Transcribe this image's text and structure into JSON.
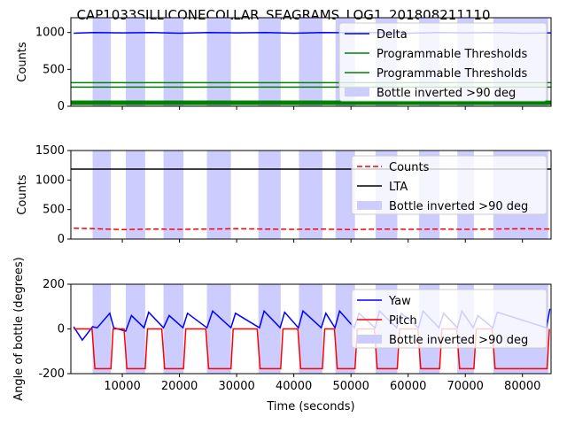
{
  "title": "CAP1033SILLICONECOLLAR_SEAGRAMS_LOG1_201808211110",
  "colors": {
    "delta": "#0000ff",
    "threshold": "#008000",
    "counts": "#ff0000",
    "lta": "#000000",
    "yaw": "#0000ff",
    "pitch": "#ff0000",
    "inverted_fill": "#ccccff"
  },
  "chart_data": [
    {
      "type": "line",
      "ylabel": "Counts",
      "xlim": [
        1000,
        85000
      ],
      "ylim": [
        0,
        1200
      ],
      "yticks": [
        0,
        500,
        1000
      ],
      "legend_position": "upper-right",
      "series": [
        {
          "name": "Delta",
          "kind": "line",
          "color": "#0000ff",
          "x": [
            1500,
            5000,
            10000,
            15000,
            20000,
            25000,
            30000,
            35000,
            40000,
            45000,
            50000,
            55000,
            60000,
            65000,
            70000,
            75000,
            80000,
            85000
          ],
          "y": [
            990,
            1000,
            995,
            1000,
            990,
            1000,
            995,
            1000,
            990,
            1000,
            995,
            1000,
            990,
            1000,
            995,
            1000,
            990,
            995
          ]
        },
        {
          "name": "Programmable Thresholds",
          "kind": "hline",
          "color": "#008000",
          "y": 320
        },
        {
          "name": "Programmable Thresholds",
          "kind": "hline",
          "color": "#008000",
          "y": 260
        },
        {
          "name": "",
          "kind": "hline",
          "color": "#008000",
          "y": 60
        },
        {
          "name": "",
          "kind": "hline",
          "color": "#008000",
          "y": 35
        },
        {
          "name": "Bottle inverted >90 deg",
          "kind": "spans",
          "color": "#ccccff"
        }
      ]
    },
    {
      "type": "line",
      "ylabel": "Counts",
      "xlim": [
        1000,
        85000
      ],
      "ylim": [
        0,
        1500
      ],
      "yticks": [
        0,
        500,
        1000,
        1500
      ],
      "legend_position": "center-right",
      "series": [
        {
          "name": "Counts",
          "kind": "line",
          "style": "dashed",
          "color": "#ff0000",
          "x": [
            1500,
            5000,
            10000,
            15000,
            20000,
            25000,
            30000,
            35000,
            40000,
            45000,
            50000,
            55000,
            60000,
            65000,
            70000,
            75000,
            80000,
            85000
          ],
          "y": [
            185,
            175,
            160,
            170,
            165,
            170,
            175,
            170,
            165,
            170,
            160,
            170,
            165,
            170,
            165,
            170,
            175,
            170
          ]
        },
        {
          "name": "LTA",
          "kind": "hline",
          "color": "#000000",
          "y": 1185
        },
        {
          "name": "Bottle inverted >90 deg",
          "kind": "spans",
          "color": "#ccccff"
        }
      ]
    },
    {
      "type": "line",
      "xlabel": "Time (seconds)",
      "ylabel": "Angle of bottle (degrees)",
      "xlim": [
        1000,
        85000
      ],
      "ylim": [
        -200,
        200
      ],
      "yticks": [
        -200,
        0,
        200
      ],
      "xticks": [
        10000,
        20000,
        30000,
        40000,
        50000,
        60000,
        70000,
        80000
      ],
      "legend_position": "center-right",
      "series": [
        {
          "name": "Yaw",
          "kind": "line",
          "color": "#0000ff",
          "x": [
            1500,
            3000,
            4800,
            5600,
            7800,
            8500,
            10600,
            11600,
            13800,
            14600,
            17200,
            18200,
            20600,
            21400,
            24800,
            25800,
            29000,
            29800,
            34000,
            34800,
            37600,
            38400,
            40800,
            41600,
            44800,
            45600,
            47200,
            48000,
            50600,
            51400,
            54200,
            55000,
            58000,
            58800,
            61800,
            62600,
            65400,
            66200,
            68600,
            69400,
            71400,
            72200,
            74800,
            75600,
            84200,
            84800
          ],
          "y": [
            10,
            -50,
            10,
            5,
            70,
            5,
            -10,
            60,
            5,
            75,
            5,
            60,
            5,
            70,
            5,
            80,
            5,
            70,
            5,
            80,
            5,
            75,
            5,
            80,
            5,
            70,
            5,
            80,
            5,
            70,
            5,
            80,
            5,
            70,
            5,
            80,
            5,
            70,
            5,
            80,
            5,
            60,
            5,
            75,
            5,
            90
          ]
        },
        {
          "name": "Pitch",
          "kind": "line",
          "color": "#ff0000",
          "x": [
            1500,
            4700,
            5200,
            8000,
            8400,
            10300,
            10800,
            14000,
            14400,
            16900,
            17400,
            20700,
            21100,
            24600,
            25100,
            29000,
            29400,
            33600,
            34100,
            37700,
            38100,
            40700,
            41200,
            45000,
            45400,
            47100,
            47600,
            50700,
            51100,
            54100,
            54600,
            58100,
            58500,
            61700,
            62200,
            65500,
            65900,
            68500,
            69000,
            71500,
            71900,
            74700,
            75200,
            84300,
            84700
          ],
          "y": [
            0,
            0,
            -178,
            -178,
            0,
            0,
            -178,
            -178,
            0,
            0,
            -178,
            -178,
            0,
            0,
            -178,
            -178,
            0,
            0,
            -178,
            -178,
            0,
            0,
            -178,
            -178,
            0,
            0,
            -178,
            -178,
            0,
            0,
            -178,
            -178,
            0,
            0,
            -178,
            -178,
            0,
            0,
            -178,
            -178,
            0,
            0,
            -178,
            -178,
            0
          ]
        },
        {
          "name": "Bottle inverted >90 deg",
          "kind": "spans",
          "color": "#ccccff"
        }
      ]
    }
  ],
  "inverted_spans": [
    [
      4800,
      8000
    ],
    [
      10600,
      14000
    ],
    [
      17200,
      20700
    ],
    [
      24800,
      29000
    ],
    [
      33800,
      37700
    ],
    [
      40900,
      45000
    ],
    [
      47300,
      50700
    ],
    [
      54300,
      58100
    ],
    [
      61900,
      65500
    ],
    [
      68600,
      71500
    ],
    [
      74900,
      84500
    ]
  ],
  "x_tick_labels": [
    "10000",
    "20000",
    "30000",
    "40000",
    "50000",
    "60000",
    "70000",
    "80000"
  ]
}
